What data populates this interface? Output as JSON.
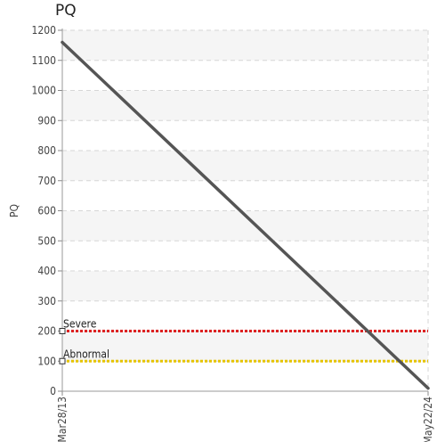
{
  "chart_data": {
    "type": "line",
    "title": "PQ",
    "ylabel": "PQ",
    "xlabel": "",
    "ylim": [
      0,
      1200
    ],
    "yticks": [
      0,
      100,
      200,
      300,
      400,
      500,
      600,
      700,
      800,
      900,
      1000,
      1100,
      1200
    ],
    "xticks": [
      "Mar28/13",
      "May22/24"
    ],
    "grid": true,
    "series": [
      {
        "x": [
          "Mar28/13",
          "May22/24"
        ],
        "values": [
          1160,
          10
        ],
        "color": "#555555"
      }
    ],
    "reference_lines": [
      {
        "label": "Severe",
        "value": 200,
        "color": "#dd2222"
      },
      {
        "label": "Abnormal",
        "value": 100,
        "color": "#e6c400"
      }
    ]
  }
}
